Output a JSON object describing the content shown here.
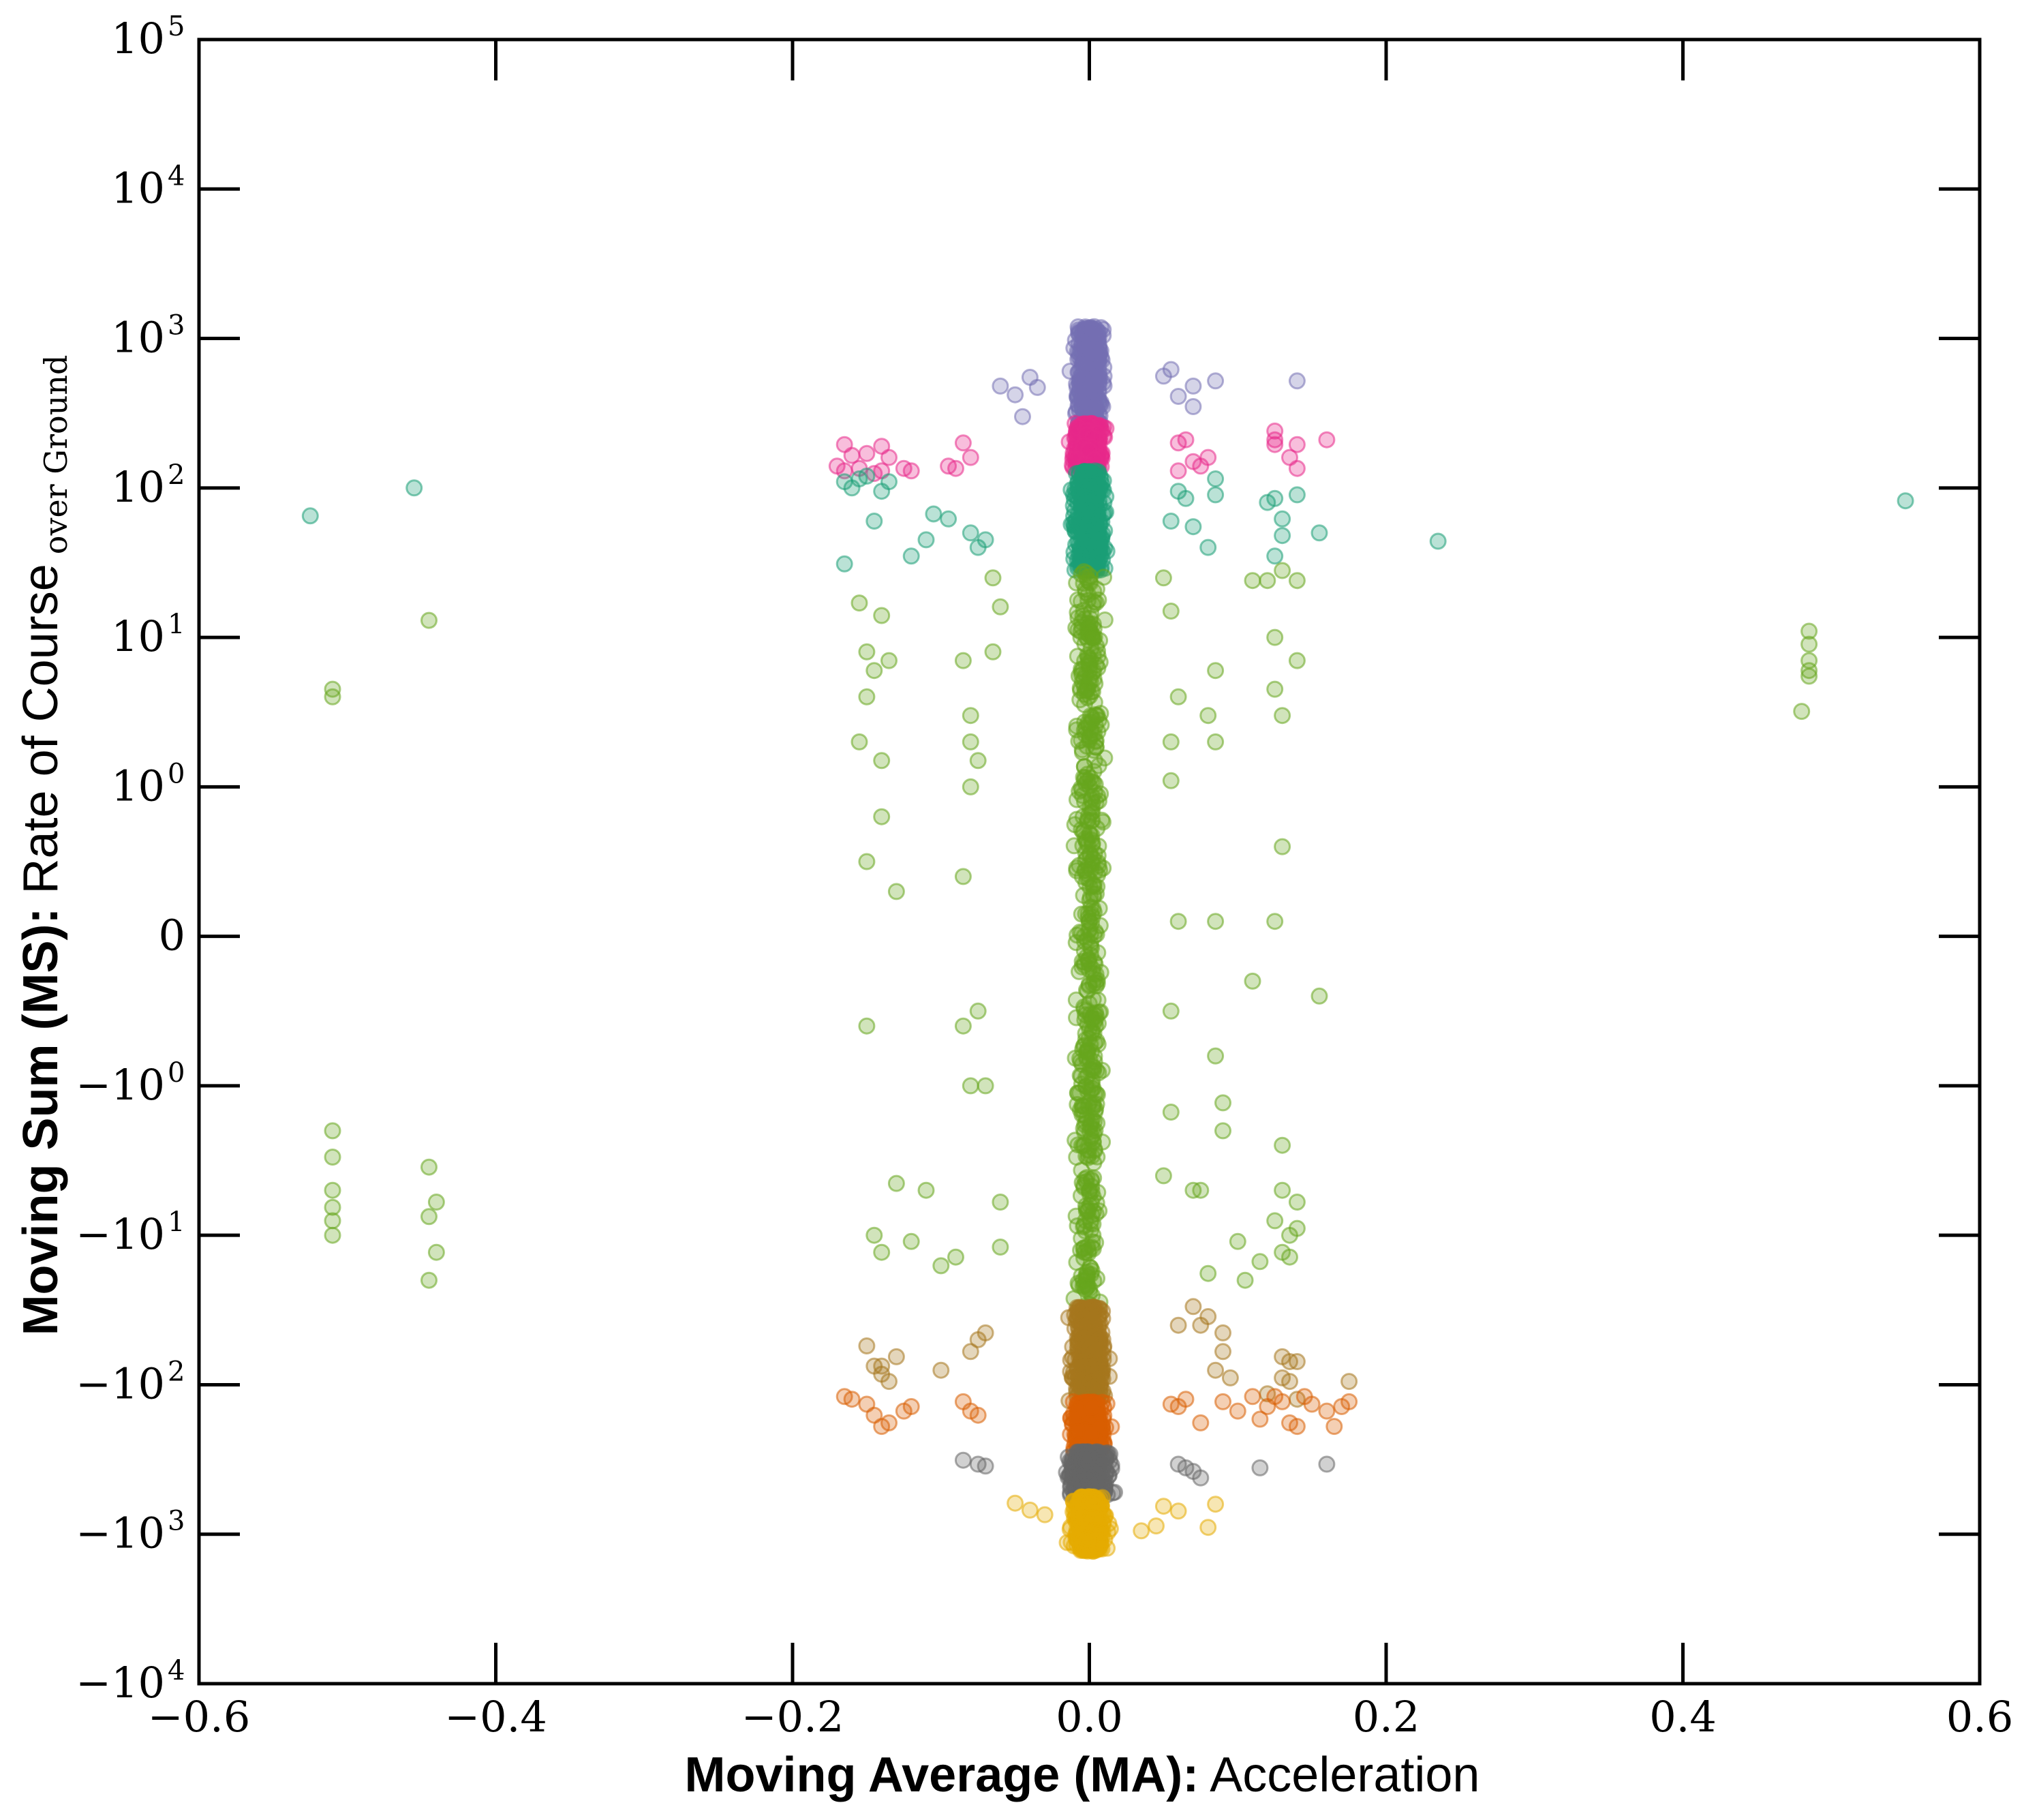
{
  "chart_data": {
    "type": "scatter",
    "xlabel_bold": "Moving Average (MA):",
    "xlabel_rest": " Acceleration",
    "ylabel_bold": "Moving Sum (MS):",
    "ylabel_rest": " Rate of Course",
    "ylabel_sub": "over Ground",
    "xlim": [
      -0.6,
      0.6
    ],
    "ylim": [
      -10000,
      100000
    ],
    "yscale": "symlog",
    "x_ticks": [
      {
        "value": -0.6,
        "label": "−0.6"
      },
      {
        "value": -0.4,
        "label": "−0.4"
      },
      {
        "value": -0.2,
        "label": "−0.2"
      },
      {
        "value": 0.0,
        "label": "0.0"
      },
      {
        "value": 0.2,
        "label": "0.2"
      },
      {
        "value": 0.4,
        "label": "0.4"
      },
      {
        "value": 0.6,
        "label": "0.6"
      }
    ],
    "y_ticks": [
      {
        "value": 100000,
        "base": "10",
        "exp": "5"
      },
      {
        "value": 10000,
        "base": "10",
        "exp": "4"
      },
      {
        "value": 1000,
        "base": "10",
        "exp": "3"
      },
      {
        "value": 100,
        "base": "10",
        "exp": "2"
      },
      {
        "value": 10,
        "base": "10",
        "exp": "1"
      },
      {
        "value": 1,
        "base": "10",
        "exp": "0"
      },
      {
        "value": 0,
        "base": "0",
        "exp": ""
      },
      {
        "value": -1,
        "base": "−10",
        "exp": "0"
      },
      {
        "value": -10,
        "base": "−10",
        "exp": "1"
      },
      {
        "value": -100,
        "base": "−10",
        "exp": "2"
      },
      {
        "value": -1000,
        "base": "−10",
        "exp": "3"
      },
      {
        "value": -10000,
        "base": "−10",
        "exp": "4"
      }
    ],
    "grid": false,
    "legend": "none",
    "marker_alpha": 0.3,
    "series": [
      {
        "color": "#7570b3",
        "core_y": [
          270,
          1200
        ],
        "core_x_sd": 0.018,
        "points": [
          [
            -0.06,
            480
          ],
          [
            -0.05,
            420
          ],
          [
            -0.045,
            300
          ],
          [
            -0.04,
            550
          ],
          [
            0.055,
            620
          ],
          [
            0.06,
            410
          ],
          [
            0.07,
            480
          ],
          [
            0.07,
            350
          ],
          [
            0.085,
            520
          ],
          [
            0.14,
            520
          ],
          [
            -0.035,
            470
          ],
          [
            0.05,
            560
          ]
        ]
      },
      {
        "color": "#e7298a",
        "core_y": [
          130,
          270
        ],
        "core_x_sd": 0.018,
        "points": [
          [
            -0.165,
            195
          ],
          [
            -0.16,
            165
          ],
          [
            -0.15,
            170
          ],
          [
            -0.14,
            190
          ],
          [
            -0.135,
            160
          ],
          [
            -0.17,
            140
          ],
          [
            -0.165,
            130
          ],
          [
            -0.155,
            135
          ],
          [
            -0.145,
            125
          ],
          [
            -0.14,
            130
          ],
          [
            -0.12,
            130
          ],
          [
            -0.125,
            135
          ],
          [
            -0.09,
            135
          ],
          [
            -0.085,
            200
          ],
          [
            -0.08,
            160
          ],
          [
            -0.095,
            140
          ],
          [
            0.06,
            200
          ],
          [
            0.065,
            210
          ],
          [
            0.07,
            150
          ],
          [
            0.075,
            140
          ],
          [
            0.06,
            130
          ],
          [
            0.125,
            240
          ],
          [
            0.125,
            210
          ],
          [
            0.125,
            195
          ],
          [
            0.135,
            160
          ],
          [
            0.14,
            195
          ],
          [
            0.14,
            135
          ],
          [
            0.16,
            210
          ],
          [
            0.08,
            160
          ]
        ]
      },
      {
        "color": "#1b9e77",
        "core_y": [
          28,
          130
        ],
        "core_x_sd": 0.02,
        "points": [
          [
            -0.525,
            65
          ],
          [
            -0.455,
            100
          ],
          [
            -0.165,
            110
          ],
          [
            -0.16,
            100
          ],
          [
            -0.155,
            115
          ],
          [
            -0.15,
            120
          ],
          [
            -0.14,
            95
          ],
          [
            -0.145,
            60
          ],
          [
            -0.135,
            110
          ],
          [
            -0.165,
            31
          ],
          [
            -0.12,
            35
          ],
          [
            -0.105,
            67
          ],
          [
            -0.095,
            62
          ],
          [
            -0.11,
            45
          ],
          [
            -0.08,
            50
          ],
          [
            -0.07,
            45
          ],
          [
            -0.075,
            40
          ],
          [
            0.06,
            95
          ],
          [
            0.065,
            85
          ],
          [
            0.055,
            60
          ],
          [
            0.07,
            55
          ],
          [
            0.08,
            40
          ],
          [
            0.085,
            90
          ],
          [
            0.085,
            115
          ],
          [
            0.12,
            80
          ],
          [
            0.125,
            85
          ],
          [
            0.13,
            62
          ],
          [
            0.13,
            48
          ],
          [
            0.125,
            35
          ],
          [
            0.14,
            90
          ],
          [
            0.155,
            50
          ],
          [
            0.235,
            44
          ],
          [
            0.55,
            82
          ]
        ]
      },
      {
        "color": "#66a61e",
        "core_y": [
          -30,
          28
        ],
        "core_x_sd": 0.017,
        "points": [
          [
            -0.51,
            4.5
          ],
          [
            -0.51,
            4.0
          ],
          [
            -0.445,
            13
          ],
          [
            -0.51,
            -2
          ],
          [
            -0.51,
            -3
          ],
          [
            -0.51,
            -5
          ],
          [
            -0.51,
            -6.5
          ],
          [
            -0.51,
            -8
          ],
          [
            -0.51,
            -10
          ],
          [
            -0.445,
            -3.5
          ],
          [
            -0.44,
            -6
          ],
          [
            -0.445,
            -7.5
          ],
          [
            -0.44,
            -13
          ],
          [
            -0.445,
            -20
          ],
          [
            -0.155,
            17
          ],
          [
            -0.15,
            8
          ],
          [
            -0.14,
            14
          ],
          [
            -0.145,
            6
          ],
          [
            -0.135,
            7
          ],
          [
            -0.15,
            4
          ],
          [
            -0.155,
            2
          ],
          [
            -0.14,
            1.5
          ],
          [
            -0.14,
            0.8
          ],
          [
            -0.15,
            0.5
          ],
          [
            -0.13,
            0.3
          ],
          [
            -0.15,
            -0.6
          ],
          [
            -0.13,
            -4.5
          ],
          [
            -0.145,
            -10
          ],
          [
            -0.14,
            -13
          ],
          [
            -0.12,
            -11
          ],
          [
            -0.11,
            -5
          ],
          [
            -0.1,
            -16
          ],
          [
            -0.09,
            -14
          ],
          [
            -0.085,
            7
          ],
          [
            -0.08,
            3
          ],
          [
            -0.08,
            2
          ],
          [
            -0.075,
            1.5
          ],
          [
            -0.08,
            1
          ],
          [
            -0.085,
            0.4
          ],
          [
            -0.085,
            -0.6
          ],
          [
            -0.08,
            -1
          ],
          [
            -0.07,
            -1
          ],
          [
            -0.075,
            -0.5
          ],
          [
            -0.06,
            -6
          ],
          [
            -0.06,
            -12
          ],
          [
            -0.065,
            25
          ],
          [
            -0.06,
            16
          ],
          [
            -0.065,
            8
          ],
          [
            0.05,
            25
          ],
          [
            0.055,
            15
          ],
          [
            0.06,
            4
          ],
          [
            0.055,
            2
          ],
          [
            0.055,
            1.1
          ],
          [
            0.06,
            0.1
          ],
          [
            0.055,
            -0.5
          ],
          [
            0.055,
            -1.5
          ],
          [
            0.05,
            -4
          ],
          [
            0.07,
            -5
          ],
          [
            0.075,
            -5
          ],
          [
            0.08,
            -18
          ],
          [
            0.08,
            3
          ],
          [
            0.085,
            6
          ],
          [
            0.085,
            2
          ],
          [
            0.085,
            0.1
          ],
          [
            0.085,
            -0.8
          ],
          [
            0.09,
            -1.3
          ],
          [
            0.09,
            -2
          ],
          [
            0.11,
            24
          ],
          [
            0.12,
            24
          ],
          [
            0.125,
            10
          ],
          [
            0.125,
            4.5
          ],
          [
            0.13,
            3
          ],
          [
            0.13,
            0.6
          ],
          [
            0.125,
            0.1
          ],
          [
            0.11,
            -0.3
          ],
          [
            0.13,
            -2.5
          ],
          [
            0.13,
            -5
          ],
          [
            0.125,
            -8
          ],
          [
            0.13,
            -13
          ],
          [
            0.135,
            -10
          ],
          [
            0.14,
            -9
          ],
          [
            0.14,
            -6
          ],
          [
            0.155,
            -0.4
          ],
          [
            0.1,
            -11
          ],
          [
            0.105,
            -20
          ],
          [
            0.115,
            -15
          ],
          [
            0.135,
            -14
          ],
          [
            0.14,
            24
          ],
          [
            0.13,
            28
          ],
          [
            0.14,
            7
          ],
          [
            0.485,
            11
          ],
          [
            0.485,
            9
          ],
          [
            0.485,
            7
          ],
          [
            0.485,
            6
          ],
          [
            0.485,
            5.5
          ],
          [
            0.48,
            3.2
          ]
        ]
      },
      {
        "color": "#a6761d",
        "core_y": [
          -130,
          -30
        ],
        "core_x_sd": 0.02,
        "points": [
          [
            -0.15,
            -55
          ],
          [
            -0.14,
            -75
          ],
          [
            -0.14,
            -85
          ],
          [
            -0.135,
            -95
          ],
          [
            -0.145,
            -75
          ],
          [
            -0.13,
            -65
          ],
          [
            -0.1,
            -80
          ],
          [
            -0.08,
            -60
          ],
          [
            -0.075,
            -50
          ],
          [
            -0.07,
            -45
          ],
          [
            0.06,
            -40
          ],
          [
            0.07,
            -30
          ],
          [
            0.075,
            -40
          ],
          [
            0.08,
            -35
          ],
          [
            0.09,
            -45
          ],
          [
            0.09,
            -60
          ],
          [
            0.085,
            -80
          ],
          [
            0.095,
            -90
          ],
          [
            0.13,
            -65
          ],
          [
            0.135,
            -70
          ],
          [
            0.14,
            -70
          ],
          [
            0.13,
            -90
          ],
          [
            0.135,
            -95
          ],
          [
            0.12,
            -115
          ],
          [
            0.14,
            -125
          ],
          [
            0.175,
            -95
          ]
        ]
      },
      {
        "color": "#d95f02",
        "core_y": [
          -280,
          -130
        ],
        "core_x_sd": 0.02,
        "points": [
          [
            -0.165,
            -120
          ],
          [
            -0.16,
            -125
          ],
          [
            -0.15,
            -135
          ],
          [
            -0.145,
            -160
          ],
          [
            -0.14,
            -190
          ],
          [
            -0.135,
            -180
          ],
          [
            -0.125,
            -150
          ],
          [
            -0.12,
            -140
          ],
          [
            -0.085,
            -130
          ],
          [
            -0.08,
            -150
          ],
          [
            -0.075,
            -160
          ],
          [
            0.055,
            -135
          ],
          [
            0.06,
            -140
          ],
          [
            0.065,
            -125
          ],
          [
            0.075,
            -180
          ],
          [
            0.09,
            -130
          ],
          [
            0.1,
            -150
          ],
          [
            0.11,
            -120
          ],
          [
            0.115,
            -170
          ],
          [
            0.12,
            -140
          ],
          [
            0.125,
            -120
          ],
          [
            0.13,
            -130
          ],
          [
            0.135,
            -180
          ],
          [
            0.14,
            -190
          ],
          [
            0.145,
            -120
          ],
          [
            0.15,
            -135
          ],
          [
            0.16,
            -150
          ],
          [
            0.165,
            -190
          ],
          [
            0.17,
            -140
          ],
          [
            0.175,
            -130
          ]
        ]
      },
      {
        "color": "#666666",
        "core_y": [
          -560,
          -280
        ],
        "core_x_sd": 0.025,
        "points": [
          [
            -0.085,
            -320
          ],
          [
            -0.075,
            -340
          ],
          [
            -0.07,
            -350
          ],
          [
            0.06,
            -340
          ],
          [
            0.065,
            -360
          ],
          [
            0.07,
            -380
          ],
          [
            0.075,
            -420
          ],
          [
            0.115,
            -360
          ],
          [
            0.16,
            -340
          ]
        ]
      },
      {
        "color": "#e6ab02",
        "core_y": [
          -1300,
          -560
        ],
        "core_x_sd": 0.02,
        "points": [
          [
            -0.05,
            -620
          ],
          [
            -0.04,
            -690
          ],
          [
            -0.03,
            -740
          ],
          [
            0.05,
            -650
          ],
          [
            0.06,
            -700
          ],
          [
            0.085,
            -630
          ],
          [
            0.08,
            -900
          ],
          [
            0.045,
            -880
          ],
          [
            0.035,
            -950
          ]
        ]
      }
    ]
  }
}
